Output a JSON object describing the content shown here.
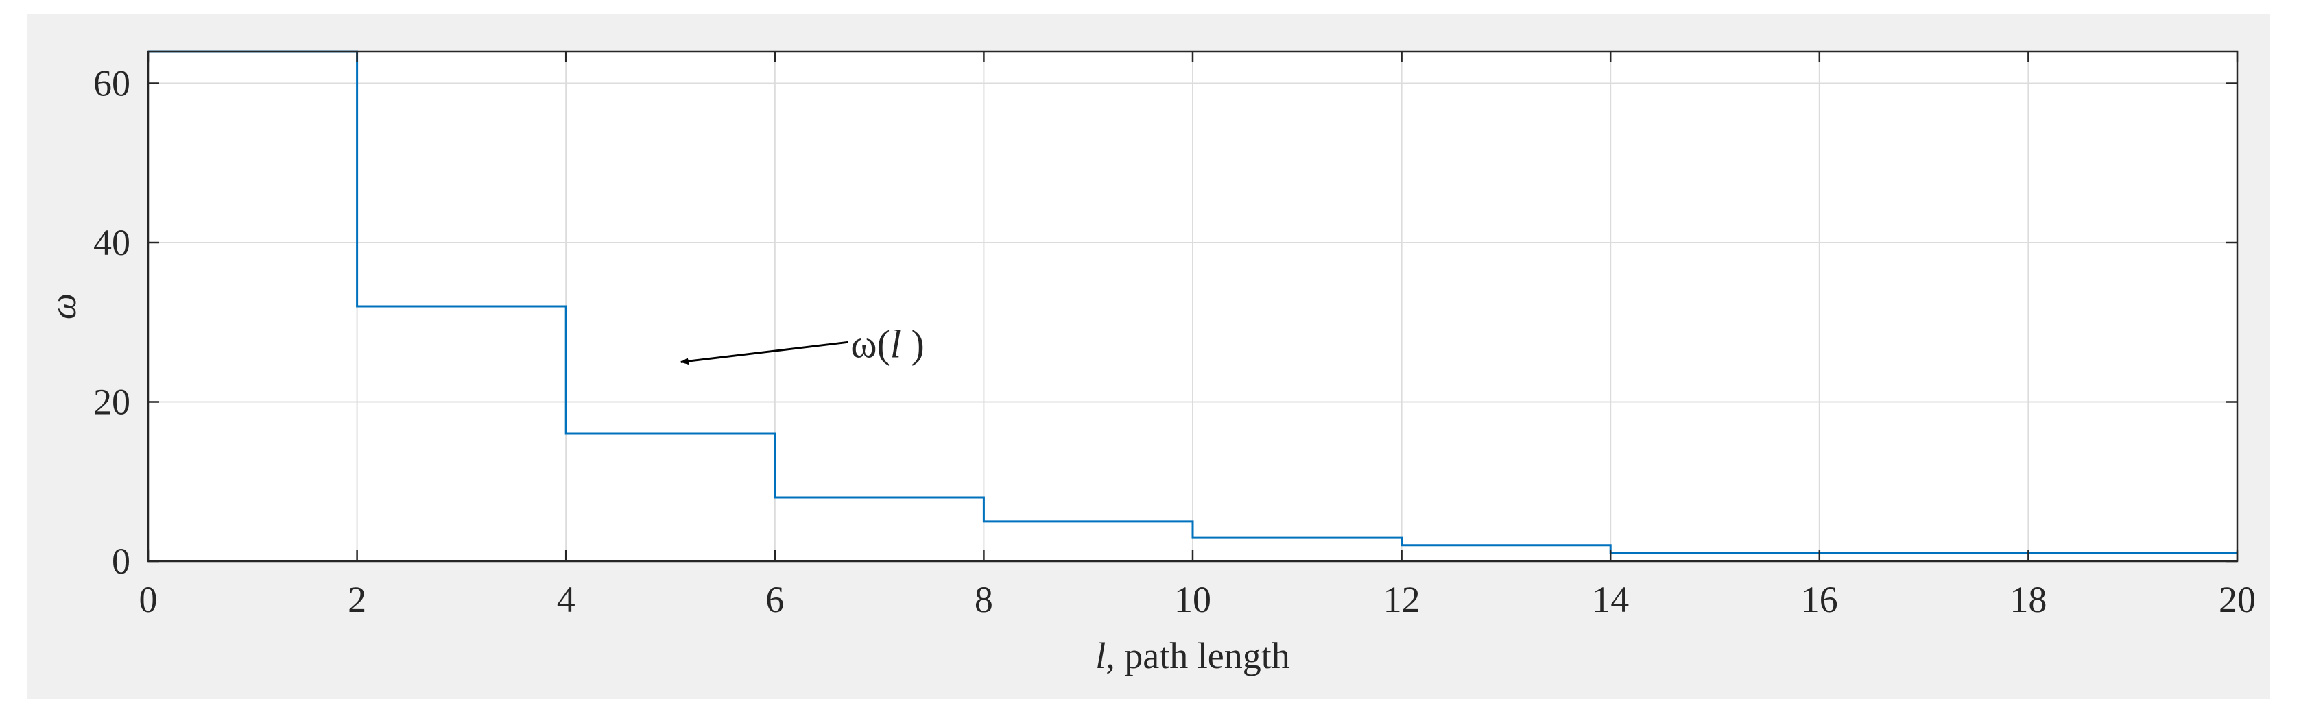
{
  "chart_data": {
    "type": "line",
    "step": true,
    "title": "",
    "xlabel_var": "l",
    "xlabel_rest": ", path length",
    "ylabel": "ω",
    "xlim": [
      0,
      20
    ],
    "ylim": [
      0,
      64
    ],
    "xticks": [
      0,
      2,
      4,
      6,
      8,
      10,
      12,
      14,
      16,
      18,
      20
    ],
    "yticks": [
      0,
      20,
      40,
      60
    ],
    "grid": true,
    "series": [
      {
        "name": "",
        "color": "#0072bd",
        "x": [
          0,
          2,
          2,
          4,
          4,
          6,
          6,
          8,
          8,
          10,
          10,
          12,
          12,
          14,
          14,
          20
        ],
        "y": [
          64,
          64,
          32,
          32,
          16,
          16,
          8,
          8,
          5,
          5,
          3,
          3,
          2,
          2,
          1,
          1
        ]
      }
    ],
    "annotation": {
      "text_prefix": "ω(",
      "text_var": "l",
      "text_suffix": " )",
      "arrow_from": [
        6.7,
        27.5
      ],
      "arrow_to": [
        5.1,
        25.0
      ]
    }
  }
}
